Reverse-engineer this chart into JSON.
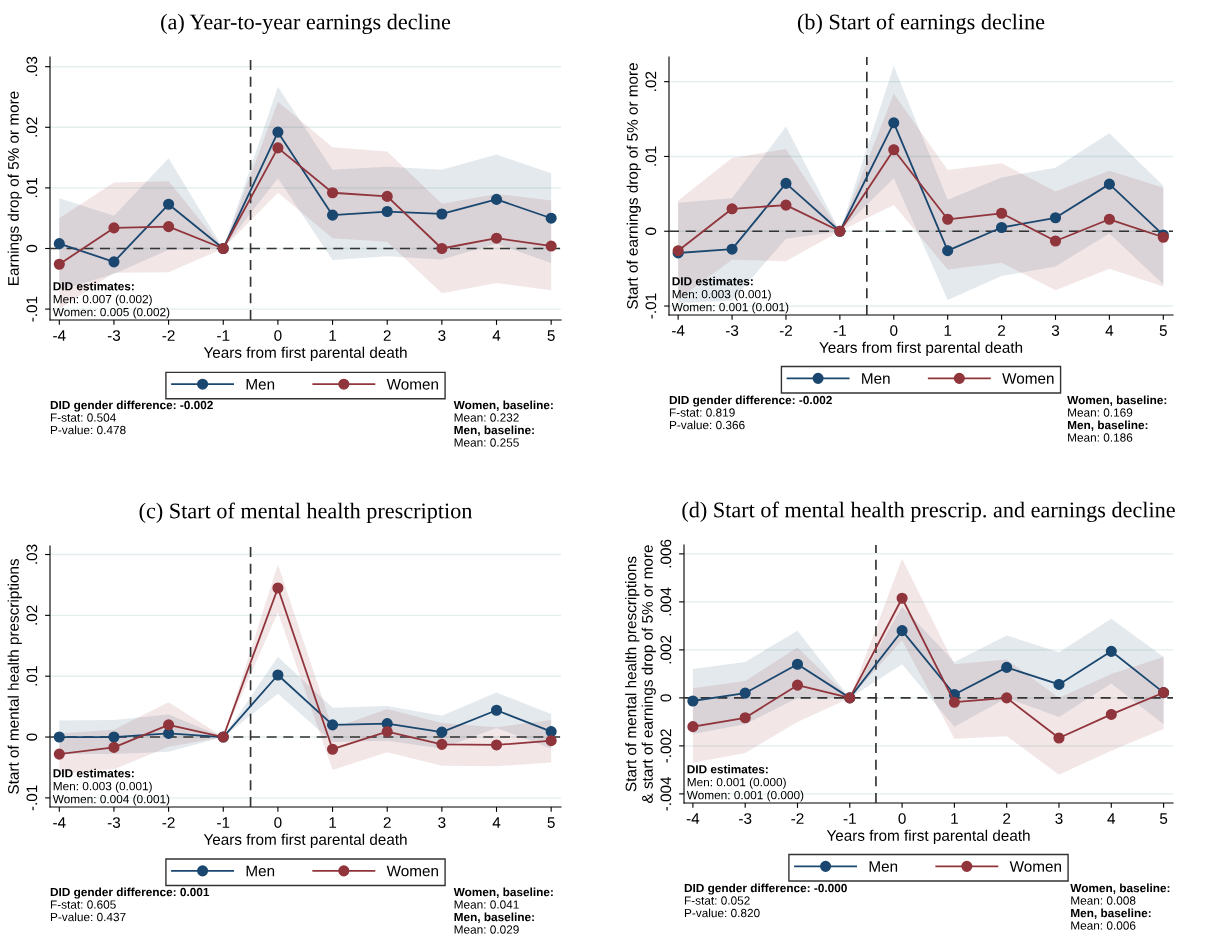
{
  "chart_data": [
    {
      "type": "line",
      "title": "(a) Year-to-year earnings decline",
      "xlabel": "Years from first parental death",
      "ylabel": "Earnings drop of 5% or more",
      "x": [
        -4,
        -3,
        -2,
        -1,
        0,
        1,
        2,
        3,
        4,
        5
      ],
      "xlim": [
        -4.17,
        5.18
      ],
      "xticks": [
        -4,
        -3,
        -2,
        -1,
        0,
        1,
        2,
        3,
        4,
        5
      ],
      "ylim": [
        -0.0118,
        0.0316
      ],
      "yticks": [
        {
          "value": -0.01,
          "label": "-.01"
        },
        0,
        {
          "value": 0.01,
          "label": ".01"
        },
        {
          "value": 0.02,
          "label": ".02"
        },
        {
          "value": 0.03,
          "label": ".03"
        }
      ],
      "grid": "y",
      "legend": "bottom",
      "marker": "circle",
      "line_style": "solid",
      "series": [
        {
          "name": "Men",
          "color": "#1a476f",
          "values": [
            0.0008,
            -0.0022,
            0.0073,
            0,
            0.0192,
            0.0055,
            0.0061,
            0.0057,
            0.0081,
            0.005
          ],
          "lower": [
            -0.0069,
            -0.0042,
            -0.0002,
            0,
            0.0116,
            -0.0019,
            -0.0013,
            -0.0018,
            0.0008,
            -0.0024
          ],
          "upper": [
            0.0083,
            0.0054,
            0.0149,
            0,
            0.0267,
            0.013,
            0.0135,
            0.013,
            0.0155,
            0.0124
          ]
        },
        {
          "name": "Women",
          "color": "#90353b",
          "values": [
            -0.0026,
            0.0034,
            0.0036,
            0,
            0.0166,
            0.0092,
            0.0086,
            0,
            0.0017,
            0.0004
          ],
          "lower": [
            -0.01,
            -0.004,
            -0.0039,
            0,
            0.0092,
            0.0017,
            0.0011,
            -0.0074,
            -0.0057,
            -0.0069
          ],
          "upper": [
            0.005,
            0.0109,
            0.0111,
            0,
            0.0242,
            0.0167,
            0.016,
            0.0074,
            0.009,
            0.0079
          ]
        }
      ],
      "ref_lines": [
        {
          "axis": "y",
          "value": 0,
          "color": "#333333",
          "line_style": "dashed"
        },
        {
          "axis": "x",
          "value": -0.5,
          "color": "#333333",
          "line_style": "dashed"
        }
      ],
      "annotations": [
        "DID estimates:",
        "Men: 0.007 (0.002)",
        "Women: 0.005 (0.002)",
        "DID gender difference: -0.002",
        "F-stat: 0.504",
        "P-value: 0.478",
        "Women, baseline:",
        "Mean: 0.232",
        "Men, baseline:",
        "Mean: 0.255"
      ]
    },
    {
      "type": "line",
      "title": "(b) Start of earnings decline",
      "xlabel": "Years from first parental death",
      "ylabel": "Start of earnings drop of 5% or more",
      "x": [
        -4,
        -3,
        -2,
        -1,
        0,
        1,
        2,
        3,
        4,
        5
      ],
      "xlim": [
        -4.17,
        5.18
      ],
      "xticks": [
        -4,
        -3,
        -2,
        -1,
        0,
        1,
        2,
        3,
        4,
        5
      ],
      "ylim": [
        -0.0112,
        0.0233
      ],
      "yticks": [
        {
          "value": -0.01,
          "label": "-.01"
        },
        0,
        {
          "value": 0.01,
          "label": ".01"
        },
        {
          "value": 0.02,
          "label": ".02"
        }
      ],
      "grid": "y",
      "legend": "bottom",
      "marker": "circle",
      "line_style": "solid",
      "series": [
        {
          "name": "Men",
          "color": "#1a476f",
          "values": [
            -0.0029,
            -0.0024,
            0.0064,
            0,
            0.0145,
            -0.0026,
            0.0005,
            0.0018,
            0.0063,
            -0.0005
          ],
          "lower": [
            -0.0096,
            -0.0093,
            -0.001,
            0,
            0.0071,
            -0.0092,
            -0.006,
            -0.0047,
            -0.0003,
            -0.0071
          ],
          "upper": [
            0.0038,
            0.0044,
            0.014,
            0,
            0.0221,
            0.0042,
            0.0072,
            0.0085,
            0.0131,
            0.0061
          ]
        },
        {
          "name": "Women",
          "color": "#90353b",
          "values": [
            -0.0026,
            0.003,
            0.0035,
            0,
            0.0109,
            0.0016,
            0.0024,
            -0.0013,
            0.0016,
            -0.0008
          ],
          "lower": [
            -0.0091,
            -0.0038,
            -0.004,
            0,
            0.0035,
            -0.0051,
            -0.0042,
            -0.0079,
            -0.005,
            -0.0074
          ],
          "upper": [
            0.0041,
            0.0098,
            0.011,
            0,
            0.0184,
            0.0082,
            0.0091,
            0.0053,
            0.0081,
            0.0058
          ]
        }
      ],
      "ref_lines": [
        {
          "axis": "y",
          "value": 0,
          "color": "#333333",
          "line_style": "dashed"
        },
        {
          "axis": "x",
          "value": -0.5,
          "color": "#333333",
          "line_style": "dashed"
        }
      ],
      "annotations": [
        "DID estimates:",
        "Men: 0.003 (0.001)",
        "Women: 0.001 (0.001)",
        "DID gender difference: -0.002",
        "F-stat: 0.819",
        "P-value: 0.366",
        "Women, baseline:",
        "Mean: 0.169",
        "Men, baseline:",
        "Mean: 0.186"
      ]
    },
    {
      "type": "line",
      "title": "(c) Start of mental health prescription",
      "xlabel": "Years from first parental death",
      "ylabel": "Start of mental health prescriptions",
      "x": [
        -4,
        -3,
        -2,
        -1,
        0,
        1,
        2,
        3,
        4,
        5
      ],
      "xlim": [
        -4.17,
        5.18
      ],
      "xticks": [
        -4,
        -3,
        -2,
        -1,
        0,
        1,
        2,
        3,
        4,
        5
      ],
      "ylim": [
        -0.0115,
        0.0314
      ],
      "yticks": [
        {
          "value": -0.01,
          "label": "-.01"
        },
        0,
        {
          "value": 0.01,
          "label": ".01"
        },
        {
          "value": 0.02,
          "label": ".02"
        },
        {
          "value": 0.03,
          "label": ".03"
        }
      ],
      "grid": "y",
      "legend": "bottom",
      "marker": "circle",
      "line_style": "solid",
      "series": [
        {
          "name": "Men",
          "color": "#1a476f",
          "values": [
            0,
            0,
            0.0006,
            0,
            0.0102,
            0.002,
            0.0022,
            0.0008,
            0.0044,
            0.0009
          ],
          "lower": [
            -0.0028,
            -0.0028,
            -0.0024,
            0,
            0.0071,
            -0.0008,
            -0.0006,
            -0.0019,
            0.0015,
            -0.0019
          ],
          "upper": [
            0.0027,
            0.0028,
            0.0037,
            0,
            0.0132,
            0.0048,
            0.0051,
            0.0035,
            0.0073,
            0.0038
          ]
        },
        {
          "name": "Women",
          "color": "#90353b",
          "values": [
            -0.0028,
            -0.0017,
            0.002,
            0,
            0.0245,
            -0.002,
            0.0009,
            -0.0012,
            -0.0013,
            -0.0006
          ],
          "lower": [
            -0.0061,
            -0.0053,
            -0.0016,
            0,
            0.0205,
            -0.0054,
            -0.0025,
            -0.0047,
            -0.0048,
            -0.0042
          ],
          "upper": [
            0.0006,
            0.0012,
            0.0057,
            0,
            0.0284,
            0.0014,
            0.0046,
            0.0023,
            0.0016,
            0.0028
          ]
        }
      ],
      "ref_lines": [
        {
          "axis": "y",
          "value": 0,
          "color": "#333333",
          "line_style": "dashed"
        },
        {
          "axis": "x",
          "value": -0.5,
          "color": "#333333",
          "line_style": "dashed"
        }
      ],
      "annotations": [
        "DID estimates:",
        "Men: 0.003 (0.001)",
        "Women: 0.004 (0.001)",
        "DID gender difference: 0.001",
        "F-stat: 0.605",
        "P-value: 0.437",
        "Women, baseline:",
        "Mean: 0.041",
        "Men, baseline:",
        "Mean: 0.029"
      ]
    },
    {
      "type": "line",
      "title": "(d) Start of mental health prescrip. and earnings decline",
      "xlabel": "Years from first parental death",
      "ylabel": "Start of mental health prescriptions\n& start of earnings drop of 5% or more",
      "x": [
        -4,
        -3,
        -2,
        -1,
        0,
        1,
        2,
        3,
        4,
        5
      ],
      "xlim": [
        -4.17,
        5.18
      ],
      "xticks": [
        -4,
        -3,
        -2,
        -1,
        0,
        1,
        2,
        3,
        4,
        5
      ],
      "ylim": [
        -0.00438,
        0.00637
      ],
      "yticks": [
        {
          "value": -0.004,
          "label": "-.004"
        },
        {
          "value": -0.002,
          "label": "-.002"
        },
        0,
        {
          "value": 0.002,
          "label": ".002"
        },
        {
          "value": 0.004,
          "label": ".004"
        },
        {
          "value": 0.006,
          "label": ".006"
        }
      ],
      "grid": "y",
      "legend": "bottom",
      "marker": "circle",
      "line_style": "solid",
      "series": [
        {
          "name": "Men",
          "color": "#1a476f",
          "values": [
            -0.00013,
            0.0002,
            0.0014,
            0,
            0.0028,
            0.00014,
            0.00127,
            0.00056,
            0.00194,
            0.00022
          ],
          "lower": [
            -0.0015,
            -0.0011,
            0,
            0,
            0.0014,
            -0.0012,
            0,
            -0.0008,
            0.0006,
            -0.0011
          ],
          "upper": [
            0.0012,
            0.0015,
            0.0028,
            0,
            0.0038,
            0.0015,
            0.0026,
            0.0019,
            0.0033,
            0.0017
          ]
        },
        {
          "name": "Women",
          "color": "#90353b",
          "values": [
            -0.0012,
            -0.00083,
            0.00053,
            0,
            0.00415,
            -0.00018,
            0,
            -0.00167,
            -0.00069,
            0.00022
          ],
          "lower": [
            -0.0027,
            -0.0023,
            -0.001,
            0,
            0.0024,
            -0.0017,
            -0.0016,
            -0.0032,
            -0.0022,
            -0.0013
          ],
          "upper": [
            0.0004,
            0.0007,
            0.0021,
            0,
            0.0058,
            0.0014,
            0.0016,
            0,
            0.001,
            0.0017
          ]
        }
      ],
      "ref_lines": [
        {
          "axis": "y",
          "value": 0,
          "color": "#333333",
          "line_style": "dashed"
        },
        {
          "axis": "x",
          "value": -0.5,
          "color": "#333333",
          "line_style": "dashed"
        }
      ],
      "annotations": [
        "DID estimates:",
        "Men: 0.001 (0.000)",
        "Women: 0.001 (0.000)",
        "DID gender difference: -0.000",
        "F-stat: 0.052",
        "P-value: 0.820",
        "Women, baseline:",
        "Mean: 0.008",
        "Men, baseline:",
        "Mean: 0.006"
      ]
    }
  ]
}
